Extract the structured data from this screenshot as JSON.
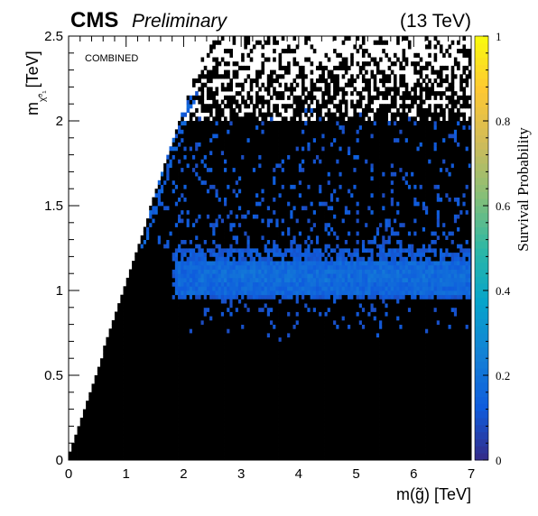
{
  "header": {
    "experiment": "CMS",
    "status": "Preliminary",
    "energy": "(13 TeV)"
  },
  "chart_data": {
    "type": "heatmap",
    "annotation": "COMBINED",
    "xlabel": "m(g̃) [TeV]",
    "ylabel": "m",
    "ylabel_subscript": "χ̃⁰₁",
    "ylabel_unit": "[TeV]",
    "zlabel": "Survival Probability",
    "xlim": [
      0,
      7
    ],
    "ylim": [
      0,
      2.5
    ],
    "zlim": [
      0,
      1
    ],
    "x_ticks": [
      "0",
      "1",
      "2",
      "3",
      "4",
      "5",
      "6",
      "7"
    ],
    "y_ticks": [
      "0",
      "0.5",
      "1",
      "1.5",
      "2",
      "2.5"
    ],
    "z_ticks": [
      "0",
      "0.2",
      "0.4",
      "0.6",
      "0.8",
      "1"
    ],
    "colormap": [
      "#352a87",
      "#0f5cdd",
      "#1481d6",
      "#06a4ca",
      "#2eb7a4",
      "#87bf77",
      "#d1bb59",
      "#fec832",
      "#f9fb0e"
    ],
    "background_color": "#000000",
    "empty_region": "m_neutralino > m_gluino (white)",
    "x_bin_width": 0.05,
    "y_bin_width": 0.025,
    "description_of_signal": [
      {
        "x_range": [
          1.85,
          7.0
        ],
        "y_range": [
          1.0,
          1.18
        ],
        "probability": 0.17
      },
      {
        "x_range": [
          2.0,
          7.0
        ],
        "y_range": [
          0.95,
          1.25
        ],
        "probability": 0.12
      },
      {
        "x_range": [
          1.6,
          7.0
        ],
        "y_range": [
          1.25,
          1.95
        ],
        "probability": 0.1,
        "sparse": true
      },
      {
        "x_range": [
          2.1,
          7.0
        ],
        "y_range": [
          0.7,
          0.95
        ],
        "probability": 0.1,
        "sparse": true
      }
    ]
  }
}
